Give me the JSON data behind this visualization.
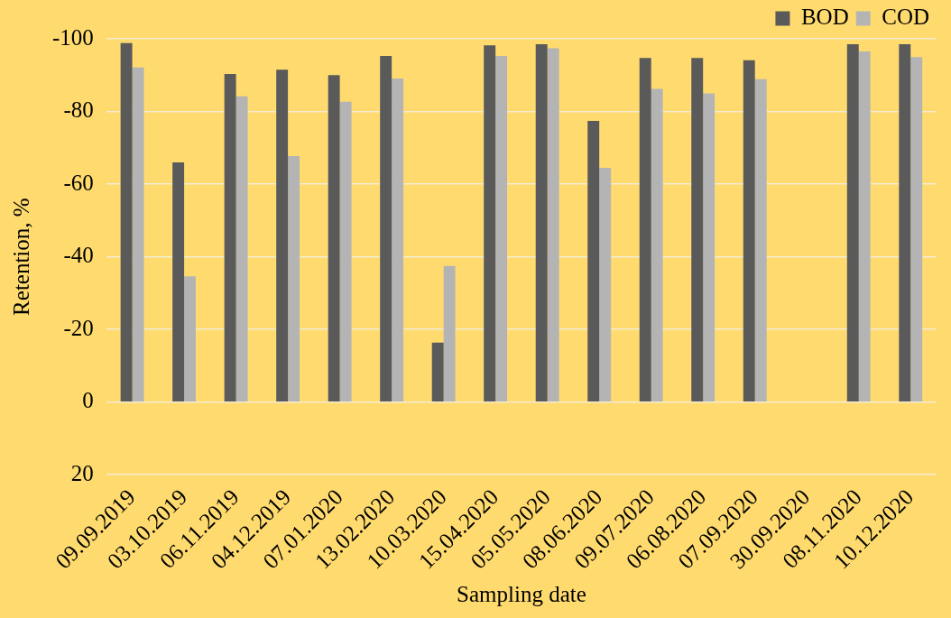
{
  "chart_data": {
    "type": "bar",
    "xlabel": "Sampling date",
    "ylabel": "Retention, %",
    "categories": [
      "09.09.2019",
      "03.10.2019",
      "06.11.2019",
      "04.12.2019",
      "07.01.2020",
      "13.02.2020",
      "10.03.2020",
      "15.04.2020",
      "05.05.2020",
      "08.06.2020",
      "09.07.2020",
      "06.08.2020",
      "07.09.2020",
      "30.09.2020",
      "08.11.2020",
      "10.12.2020"
    ],
    "series": [
      {
        "name": "BOD",
        "color": "#5a5a5a",
        "values": [
          -98.8,
          -66.0,
          -90.3,
          -91.5,
          -90.0,
          -95.3,
          -16.4,
          -98.2,
          -98.5,
          -77.4,
          -94.7,
          -94.7,
          -94.1,
          null,
          -98.5,
          -98.5
        ]
      },
      {
        "name": "COD",
        "color": "#b4b4b4",
        "values": [
          -92.1,
          -34.6,
          -84.2,
          -67.7,
          -82.7,
          -89.1,
          -37.5,
          -95.3,
          -97.4,
          -64.5,
          -86.2,
          -85.0,
          -88.9,
          null,
          -96.5,
          -95.0
        ]
      }
    ],
    "ylim": [
      20,
      -100
    ],
    "yticks": [
      -100,
      -80,
      -60,
      -40,
      -20,
      0,
      20
    ],
    "grid": "y",
    "legend": "top right"
  }
}
